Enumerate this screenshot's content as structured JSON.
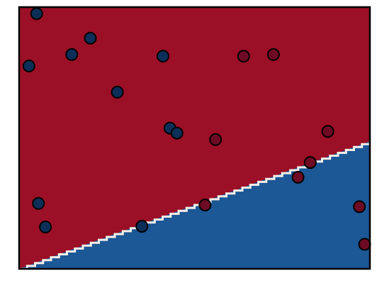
{
  "chart_data": {
    "type": "scatter",
    "title": "",
    "xlabel": "",
    "ylabel": "",
    "xlim": [
      0,
      10
    ],
    "ylim": [
      0,
      8
    ],
    "grid": false,
    "legend": "none",
    "axis_ticks": false,
    "colors": {
      "region_upper": "#9b1026",
      "region_lower": "#1c5796",
      "boundary": "#f6efe9",
      "point_class_0": "#0b2f58",
      "point_class_1": "#6e0a24",
      "point_edge": "#000000"
    },
    "decision_boundary": {
      "from": {
        "x": 0.0,
        "y": 0.0
      },
      "to": {
        "x": 10.0,
        "y": 3.9
      }
    },
    "series": [
      {
        "class": 0,
        "points": [
          {
            "x": 0.5,
            "y": 7.8
          },
          {
            "x": 0.28,
            "y": 6.2
          },
          {
            "x": 1.5,
            "y": 6.55
          },
          {
            "x": 2.03,
            "y": 7.05
          },
          {
            "x": 4.1,
            "y": 6.5
          },
          {
            "x": 2.8,
            "y": 5.4
          },
          {
            "x": 4.3,
            "y": 4.3
          },
          {
            "x": 4.5,
            "y": 4.15
          },
          {
            "x": 0.55,
            "y": 2.0
          },
          {
            "x": 0.75,
            "y": 1.28
          },
          {
            "x": 3.5,
            "y": 1.3
          }
        ]
      },
      {
        "class": 1,
        "points": [
          {
            "x": 6.4,
            "y": 6.5
          },
          {
            "x": 7.25,
            "y": 6.55
          },
          {
            "x": 5.6,
            "y": 3.95
          },
          {
            "x": 8.8,
            "y": 4.2
          },
          {
            "x": 8.3,
            "y": 3.25
          },
          {
            "x": 7.95,
            "y": 2.8
          },
          {
            "x": 5.3,
            "y": 1.95
          },
          {
            "x": 9.7,
            "y": 1.9
          },
          {
            "x": 9.85,
            "y": 0.75
          }
        ]
      }
    ]
  }
}
